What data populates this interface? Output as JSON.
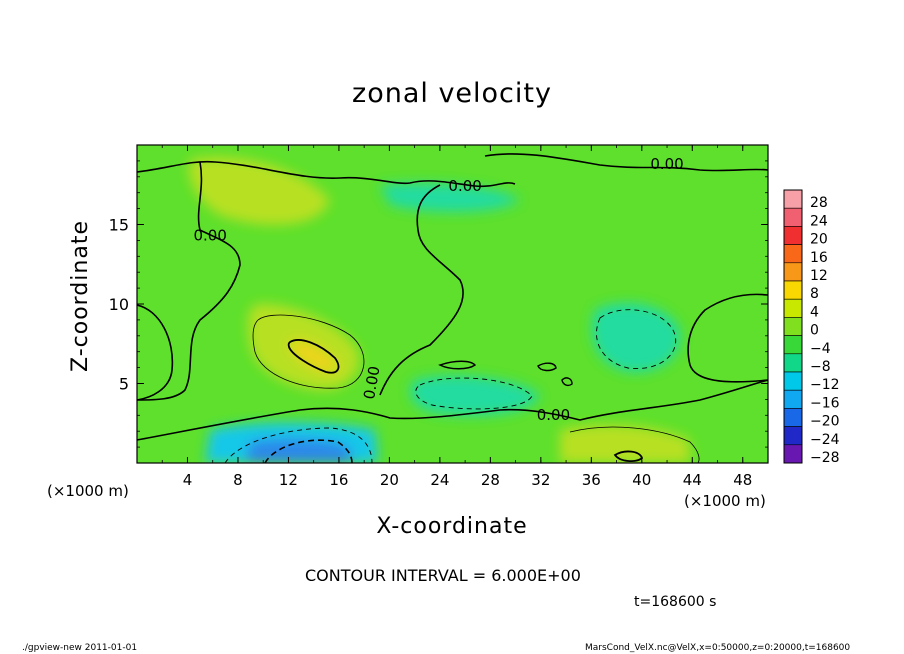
{
  "chart_data": {
    "type": "heatmap",
    "title": "zonal velocity",
    "xlabel": "X-coordinate",
    "ylabel": "Z-coordinate",
    "x_unit": "(×1000 m)",
    "y_unit": "(×1000 m)",
    "xlim": [
      0,
      50
    ],
    "ylim": [
      0,
      20
    ],
    "x_ticks": [
      "4",
      "8",
      "12",
      "16",
      "20",
      "24",
      "28",
      "32",
      "36",
      "40",
      "44",
      "48"
    ],
    "y_ticks": [
      "5",
      "10",
      "15"
    ],
    "contour_interval_text": "CONTOUR INTERVAL = 6.000E+00",
    "contour_labels": [
      "0.00",
      "0.00",
      "0.00",
      "0.00",
      "0.00"
    ],
    "time_text": "t=168600 s",
    "colorbar": {
      "labels": [
        "28",
        "24",
        "20",
        "16",
        "12",
        "8",
        "4",
        "0",
        "−4",
        "−8",
        "−12",
        "−16",
        "−20",
        "−24",
        "−28"
      ],
      "colors": [
        "#f8a0a8",
        "#f06070",
        "#f03030",
        "#f86818",
        "#f89818",
        "#f8d800",
        "#c8e800",
        "#80e020",
        "#38d838",
        "#10d888",
        "#00c8e8",
        "#10a8f0",
        "#1868e8",
        "#2028c8",
        "#6818b0"
      ]
    },
    "field_colors": {
      "background": "#5ee02c",
      "warm_strong": "#ecd41a",
      "warm": "#b8e024",
      "cool": "#24dca0",
      "cool_strong": "#18c8e8",
      "cold": "#2a88ea"
    }
  },
  "footer": {
    "left": "./gpview-new   2011-01-01",
    "right": "MarsCond_VelX.nc@VelX,x=0:50000,z=0:20000,t=168600"
  }
}
